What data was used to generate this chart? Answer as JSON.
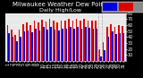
{
  "title": "Milwaukee Weather Dew Point",
  "subtitle": "Daily High/Low",
  "background_color": "#000000",
  "plot_bg_color": "#e8e8e8",
  "bar_width": 0.38,
  "high_color": "#dd0000",
  "low_color": "#0000dd",
  "grid_color": "#ffffff",
  "vgrid_color": "#aaaaaa",
  "days": [
    1,
    2,
    3,
    4,
    5,
    6,
    7,
    8,
    9,
    10,
    11,
    12,
    13,
    14,
    15,
    16,
    17,
    18,
    19,
    20,
    21,
    22,
    23,
    24,
    25,
    26,
    27,
    28,
    29,
    30,
    31
  ],
  "highs": [
    60,
    52,
    44,
    52,
    62,
    64,
    60,
    67,
    64,
    69,
    66,
    71,
    67,
    64,
    68,
    67,
    70,
    68,
    70,
    67,
    70,
    68,
    67,
    68,
    20,
    32,
    57,
    61,
    57,
    60,
    58
  ],
  "lows": [
    47,
    40,
    33,
    40,
    49,
    51,
    48,
    54,
    51,
    57,
    53,
    57,
    53,
    51,
    54,
    54,
    57,
    54,
    57,
    54,
    57,
    56,
    54,
    54,
    8,
    18,
    41,
    49,
    45,
    47,
    46
  ],
  "ylim": [
    0,
    80
  ],
  "yticks": [
    10,
    20,
    30,
    40,
    50,
    60,
    70,
    80
  ],
  "tick_fontsize": 3.5,
  "title_fontsize": 5,
  "subtitle_fontsize": 4.5
}
